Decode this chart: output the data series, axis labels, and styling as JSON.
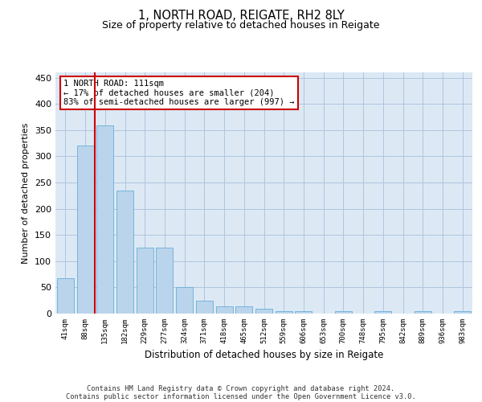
{
  "title_line1": "1, NORTH ROAD, REIGATE, RH2 8LY",
  "title_line2": "Size of property relative to detached houses in Reigate",
  "xlabel": "Distribution of detached houses by size in Reigate",
  "ylabel": "Number of detached properties",
  "categories": [
    "41sqm",
    "88sqm",
    "135sqm",
    "182sqm",
    "229sqm",
    "277sqm",
    "324sqm",
    "371sqm",
    "418sqm",
    "465sqm",
    "512sqm",
    "559sqm",
    "606sqm",
    "653sqm",
    "700sqm",
    "748sqm",
    "795sqm",
    "842sqm",
    "889sqm",
    "936sqm",
    "983sqm"
  ],
  "values": [
    67,
    321,
    359,
    234,
    126,
    126,
    50,
    24,
    14,
    14,
    9,
    5,
    4,
    0,
    4,
    0,
    4,
    0,
    4,
    0,
    4
  ],
  "bar_color": "#bad4ec",
  "bar_edge_color": "#6aaed6",
  "vline_x": 1.5,
  "vline_color": "#cc0000",
  "annotation_text": "1 NORTH ROAD: 111sqm\n← 17% of detached houses are smaller (204)\n83% of semi-detached houses are larger (997) →",
  "annotation_box_facecolor": "#ffffff",
  "annotation_box_edgecolor": "#cc0000",
  "ylim": [
    0,
    460
  ],
  "yticks": [
    0,
    50,
    100,
    150,
    200,
    250,
    300,
    350,
    400,
    450
  ],
  "footer_line1": "Contains HM Land Registry data © Crown copyright and database right 2024.",
  "footer_line2": "Contains public sector information licensed under the Open Government Licence v3.0.",
  "plot_bg_color": "#dce9f5",
  "grid_color": "#b0c4de",
  "fig_bg_color": "#ffffff"
}
